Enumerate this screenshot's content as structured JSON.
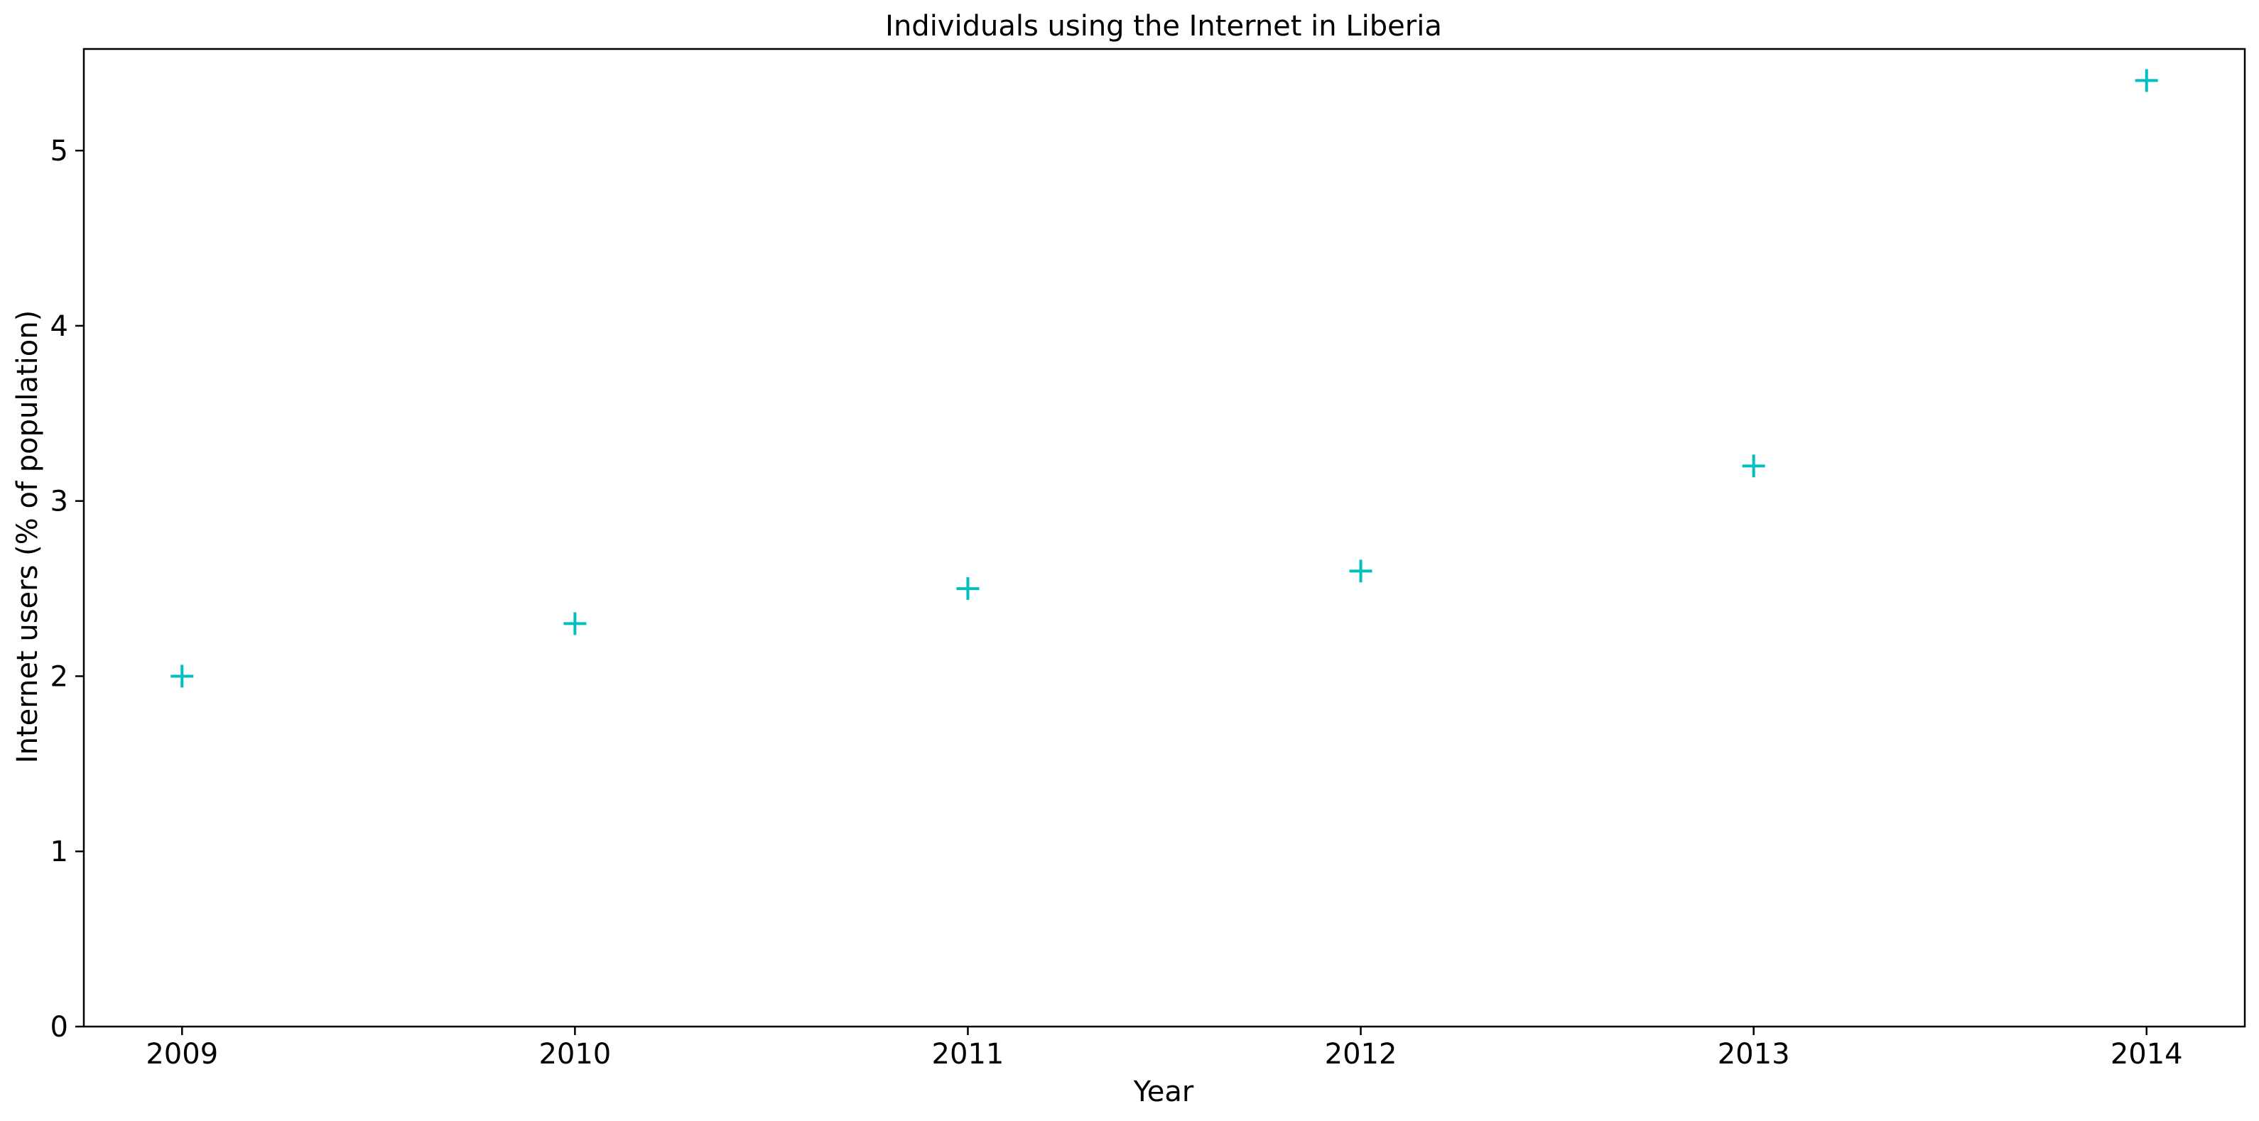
{
  "chart_data": {
    "type": "scatter",
    "title": "Individuals using the Internet in Liberia",
    "xlabel": "Year",
    "ylabel": "Internet users (% of population)",
    "x": [
      2009,
      2010,
      2011,
      2012,
      2013,
      2014
    ],
    "series": [
      {
        "values": [
          2.0,
          2.3,
          2.5,
          2.6,
          3.2,
          5.4
        ],
        "color": "#00bfbf",
        "marker": "plus"
      }
    ],
    "x_ticks": [
      "2009",
      "2010",
      "2011",
      "2012",
      "2013",
      "2014"
    ],
    "y_ticks": [
      "0",
      "1",
      "2",
      "3",
      "4",
      "5"
    ],
    "xlim": [
      2008.75,
      2014.25
    ],
    "ylim": [
      0,
      5.58
    ],
    "grid": false,
    "legend": "none"
  }
}
